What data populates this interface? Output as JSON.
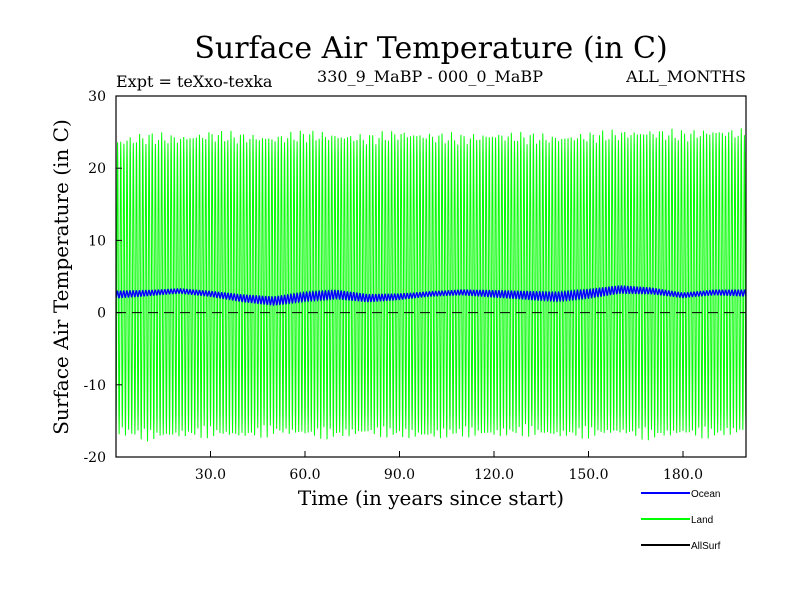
{
  "chart_data": {
    "type": "line",
    "title": "Surface Air Temperature (in C)",
    "subtitle_left": "Expt = teXxo-texka",
    "subtitle_center": "330_9_MaBP - 000_0_MaBP",
    "subtitle_right": "ALL_MONTHS",
    "xlabel": "Time (in years since start)",
    "ylabel": "Surface Air Temperature (in C)",
    "xlim": [
      0,
      200
    ],
    "ylim": [
      -20,
      30
    ],
    "x_ticks": [
      30,
      60,
      90,
      120,
      150,
      180
    ],
    "x_tick_labels": [
      "30.0",
      "60.0",
      "90.0",
      "120.0",
      "150.0",
      "180.0"
    ],
    "y_ticks": [
      -20,
      -10,
      0,
      10,
      20,
      30
    ],
    "y_tick_labels": [
      "-20",
      "-10",
      "0",
      "10",
      "20",
      "30"
    ],
    "zero_line": "dashed",
    "legend_position": "bottom-right",
    "series": [
      {
        "name": "Ocean",
        "color": "#0000ff",
        "description": "annual cycle of small amplitude",
        "mean_profile": [
          2.5,
          2.7,
          3.0,
          2.6,
          2.0,
          1.6,
          2.2,
          2.5,
          2.0,
          2.2,
          2.6,
          2.8,
          2.6,
          2.4,
          2.2,
          2.6,
          3.2,
          3.0,
          2.4,
          2.8,
          2.7
        ],
        "half_amplitude": 0.45
      },
      {
        "name": "Land",
        "color": "#00ff00",
        "description": "monthly values oscillating between about -17 and +25",
        "max_envelope": [
          23.5,
          24.2,
          24.0,
          24.5,
          24.2,
          24.0,
          24.5,
          24.3,
          24.0,
          24.6,
          24.3,
          24.0,
          24.4,
          24.2,
          24.0,
          24.3,
          24.6,
          24.8,
          24.5,
          24.9,
          24.7
        ],
        "min_envelope": [
          -16.3,
          -17.0,
          -16.8,
          -16.5,
          -16.9,
          -16.3,
          -16.6,
          -16.8,
          -16.4,
          -16.7,
          -16.9,
          -16.5,
          -16.7,
          -16.3,
          -16.8,
          -16.6,
          -16.4,
          -16.9,
          -16.5,
          -16.7,
          -16.2
        ],
        "cycles_per_year": 1
      },
      {
        "name": "AllSurf",
        "color": "#000000",
        "description": "legend entry only, hidden beneath other series"
      }
    ]
  }
}
